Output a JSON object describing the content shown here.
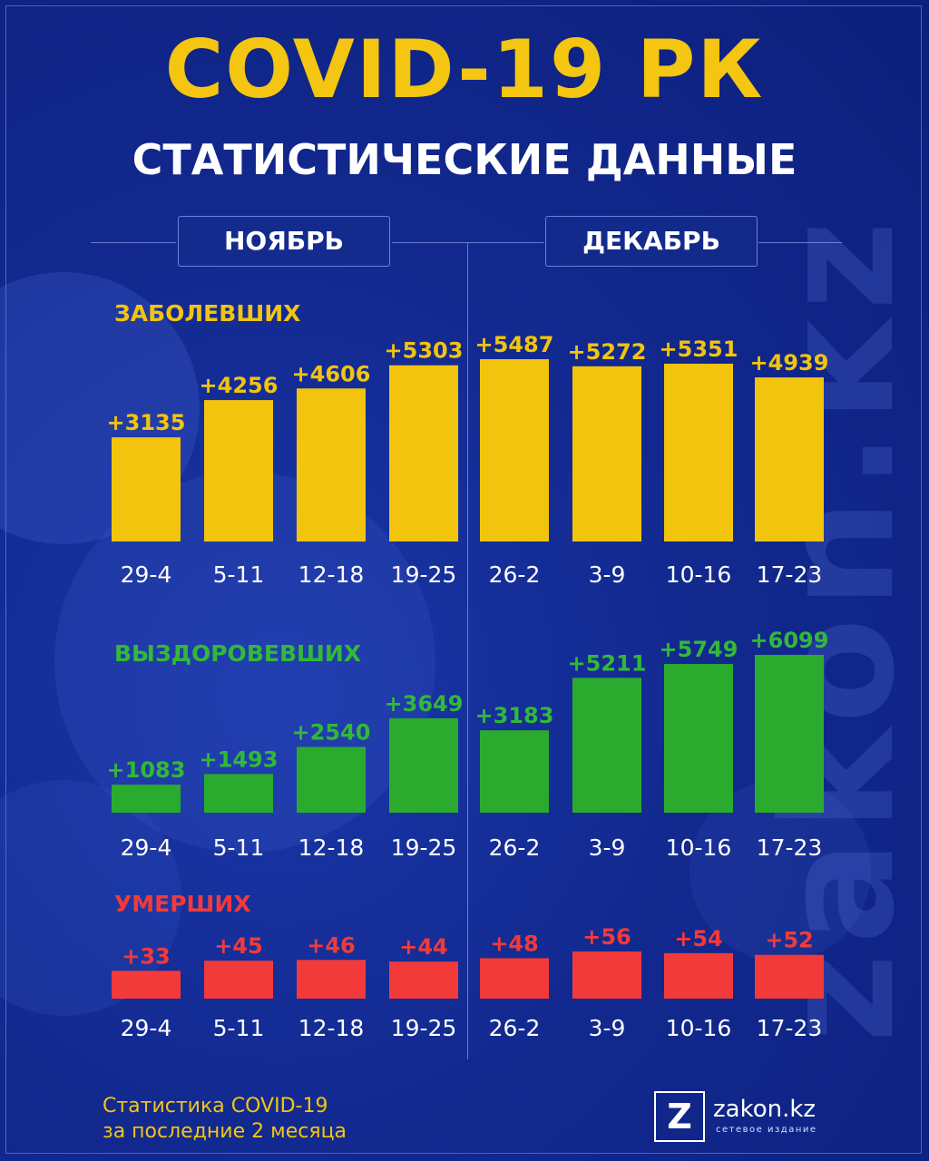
{
  "title": "COVID-19 РК",
  "subtitle": "СТАТИСТИЧЕСКИЕ ДАННЫЕ",
  "months": [
    "НОЯБРЬ",
    "ДЕКАБРЬ"
  ],
  "watermark": "zakon.kz",
  "chart_data": [
    {
      "type": "bar",
      "title": "ЗАБОЛЕВШИХ",
      "color": "#f2c40e",
      "label_color": "#f2c40e",
      "categories": [
        "29-4",
        "5-11",
        "12-18",
        "19-25",
        "26-2",
        "3-9",
        "10-16",
        "17-23"
      ],
      "values": [
        3135,
        4256,
        4606,
        5303,
        5487,
        5272,
        5351,
        4939
      ],
      "labels": [
        "+3135",
        "+4256",
        "+4606",
        "+5303",
        "+5487",
        "+5272",
        "+5351",
        "+4939"
      ]
    },
    {
      "type": "bar",
      "title": "ВЫЗДОРОВЕВШИХ",
      "color": "#2bab2e",
      "label_color": "#32b937",
      "categories": [
        "29-4",
        "5-11",
        "12-18",
        "19-25",
        "26-2",
        "3-9",
        "10-16",
        "17-23"
      ],
      "values": [
        1083,
        1493,
        2540,
        3649,
        3183,
        5211,
        5749,
        6099
      ],
      "labels": [
        "+1083",
        "+1493",
        "+2540",
        "+3649",
        "+3183",
        "+5211",
        "+5749",
        "+6099"
      ]
    },
    {
      "type": "bar",
      "title": "УМЕРШИХ",
      "color": "#f23a3a",
      "label_color": "#f23a3a",
      "categories": [
        "29-4",
        "5-11",
        "12-18",
        "19-25",
        "26-2",
        "3-9",
        "10-16",
        "17-23"
      ],
      "values": [
        33,
        45,
        46,
        44,
        48,
        56,
        54,
        52
      ],
      "labels": [
        "+33",
        "+45",
        "+46",
        "+44",
        "+48",
        "+56",
        "+54",
        "+52"
      ]
    }
  ],
  "footer": {
    "line1": "Статистика COVID-19",
    "line2": "за последние 2 месяца"
  },
  "logo": {
    "mark": "Z",
    "name": "zakon.kz",
    "tagline": "сетевое издание"
  }
}
